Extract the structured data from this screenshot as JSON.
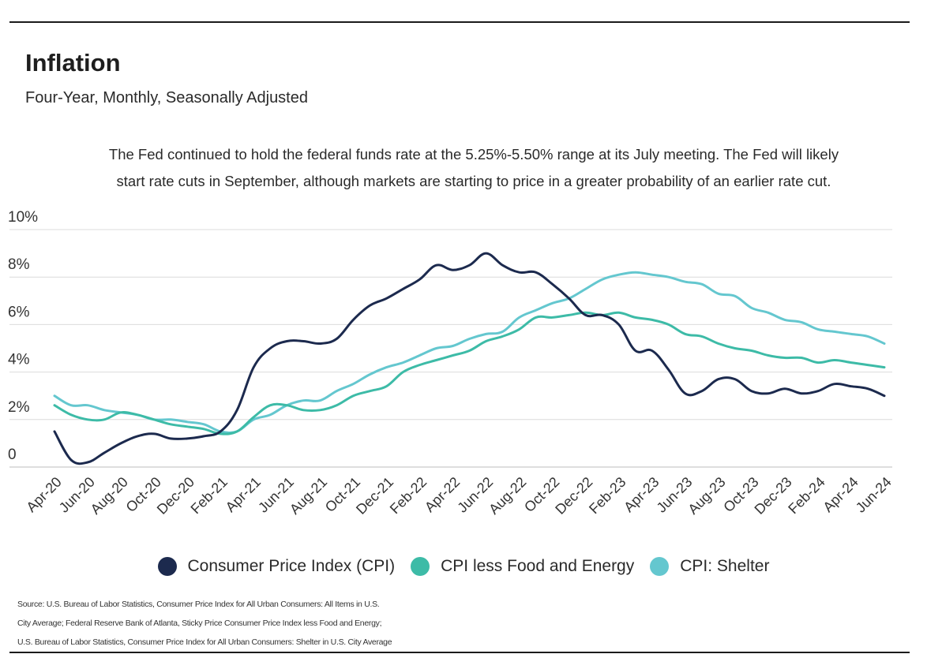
{
  "header": {
    "title": "Inflation",
    "subtitle": "Four-Year, Monthly, Seasonally Adjusted",
    "note_line1": "The Fed continued to hold the federal funds rate at the 5.25%-5.50% range at its July meeting. The Fed will likely",
    "note_line2": "start rate cuts in September, although markets are starting to price in a greater probability of an earlier rate cut."
  },
  "source": {
    "line1": "Source:  U.S. Bureau of Labor Statistics, Consumer Price Index for All Urban Consumers: All Items in U.S.",
    "line2": "City Average; Federal Reserve Bank of Atlanta, Sticky Price Consumer Price Index less Food and Energy;",
    "line3": "U.S. Bureau of Labor Statistics, Consumer Price Index for All Urban Consumers: Shelter in U.S. City Average"
  },
  "chart_data": {
    "type": "line",
    "x": [
      "Apr-20",
      "May-20",
      "Jun-20",
      "Jul-20",
      "Aug-20",
      "Sep-20",
      "Oct-20",
      "Nov-20",
      "Dec-20",
      "Jan-21",
      "Feb-21",
      "Mar-21",
      "Apr-21",
      "May-21",
      "Jun-21",
      "Jul-21",
      "Aug-21",
      "Sep-21",
      "Oct-21",
      "Nov-21",
      "Dec-21",
      "Jan-22",
      "Feb-22",
      "Mar-22",
      "Apr-22",
      "May-22",
      "Jun-22",
      "Jul-22",
      "Aug-22",
      "Sep-22",
      "Oct-22",
      "Nov-22",
      "Dec-22",
      "Jan-23",
      "Feb-23",
      "Mar-23",
      "Apr-23",
      "May-23",
      "Jun-23",
      "Jul-23",
      "Aug-23",
      "Sep-23",
      "Oct-23",
      "Nov-23",
      "Dec-23",
      "Jan-24",
      "Feb-24",
      "Mar-24",
      "Apr-24",
      "May-24",
      "Jun-24"
    ],
    "x_tick_labels": [
      "Apr-20",
      "Jun-20",
      "Aug-20",
      "Oct-20",
      "Dec-20",
      "Feb-21",
      "Apr-21",
      "Jun-21",
      "Aug-21",
      "Oct-21",
      "Dec-21",
      "Feb-22",
      "Apr-22",
      "Jun-22",
      "Aug-22",
      "Oct-22",
      "Dec-22",
      "Feb-23",
      "Apr-23",
      "Jun-23",
      "Aug-23",
      "Oct-23",
      "Dec-23",
      "Feb-24",
      "Apr-24",
      "Jun-24"
    ],
    "y_ticks": [
      "0",
      "2%",
      "4%",
      "6%",
      "8%",
      "10%"
    ],
    "ylim": [
      0,
      10
    ],
    "grid": true,
    "legend_position": "bottom",
    "series": [
      {
        "name": "Consumer Price Index (CPI)",
        "color": "#1c2a4e",
        "values": [
          1.5,
          0.3,
          0.2,
          0.6,
          1.0,
          1.3,
          1.4,
          1.2,
          1.2,
          1.3,
          1.5,
          2.4,
          4.2,
          5.0,
          5.3,
          5.3,
          5.2,
          5.4,
          6.2,
          6.8,
          7.1,
          7.5,
          7.9,
          8.5,
          8.3,
          8.5,
          9.0,
          8.5,
          8.2,
          8.2,
          7.7,
          7.1,
          6.4,
          6.4,
          6.0,
          4.9,
          4.9,
          4.1,
          3.1,
          3.2,
          3.7,
          3.7,
          3.2,
          3.1,
          3.3,
          3.1,
          3.2,
          3.5,
          3.4,
          3.3,
          3.0
        ]
      },
      {
        "name": "CPI less Food and Energy",
        "color": "#3dbba7",
        "values": [
          2.6,
          2.2,
          2.0,
          2.0,
          2.3,
          2.2,
          2.0,
          1.8,
          1.7,
          1.6,
          1.4,
          1.5,
          2.1,
          2.6,
          2.6,
          2.4,
          2.4,
          2.6,
          3.0,
          3.2,
          3.4,
          4.0,
          4.3,
          4.5,
          4.7,
          4.9,
          5.3,
          5.5,
          5.8,
          6.3,
          6.3,
          6.4,
          6.5,
          6.4,
          6.5,
          6.3,
          6.2,
          6.0,
          5.6,
          5.5,
          5.2,
          5.0,
          4.9,
          4.7,
          4.6,
          4.6,
          4.4,
          4.5,
          4.4,
          4.3,
          4.2
        ]
      },
      {
        "name": "CPI: Shelter",
        "color": "#64c7cf",
        "values": [
          3.0,
          2.6,
          2.6,
          2.4,
          2.3,
          2.2,
          2.0,
          2.0,
          1.9,
          1.8,
          1.5,
          1.5,
          2.0,
          2.2,
          2.6,
          2.8,
          2.8,
          3.2,
          3.5,
          3.9,
          4.2,
          4.4,
          4.7,
          5.0,
          5.1,
          5.4,
          5.6,
          5.7,
          6.3,
          6.6,
          6.9,
          7.1,
          7.5,
          7.9,
          8.1,
          8.2,
          8.1,
          8.0,
          7.8,
          7.7,
          7.3,
          7.2,
          6.7,
          6.5,
          6.2,
          6.1,
          5.8,
          5.7,
          5.6,
          5.5,
          5.2
        ]
      }
    ]
  }
}
